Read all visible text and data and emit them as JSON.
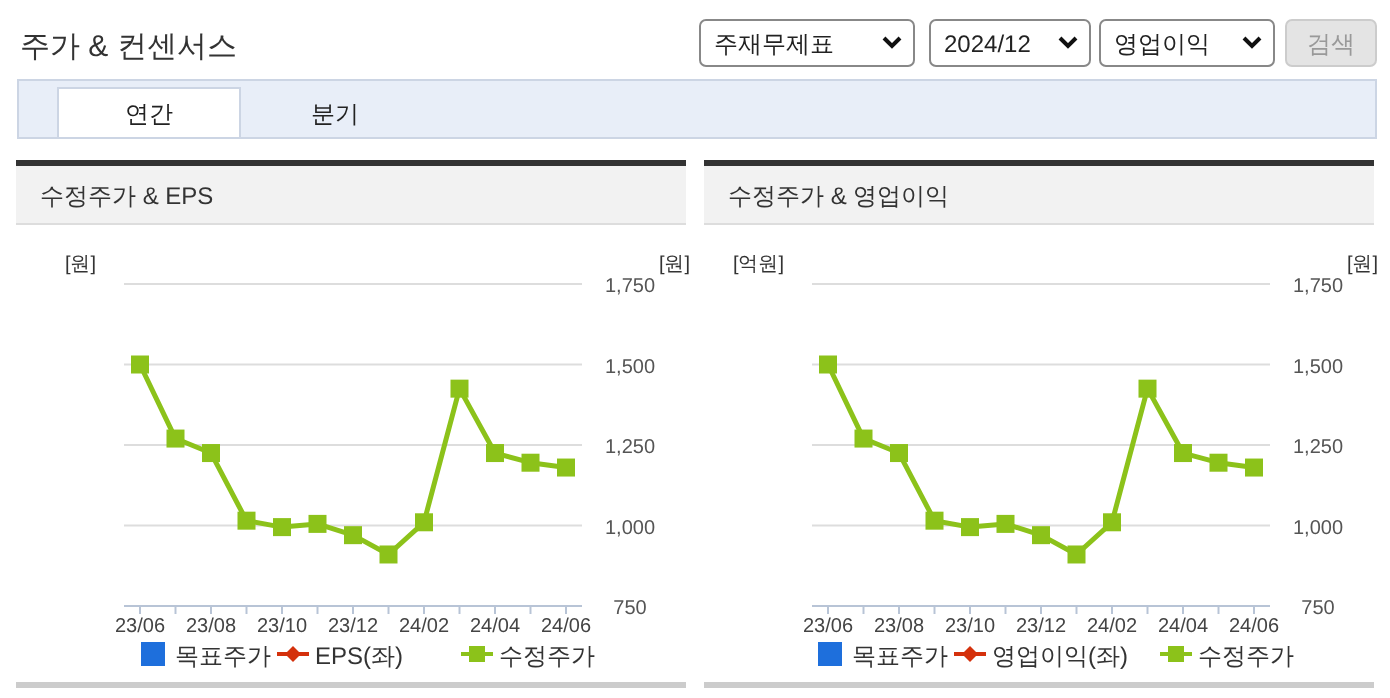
{
  "chart_data": [
    {
      "type": "other",
      "title": "주가 & 컨센서스",
      "annotations": [
        "주재무제표",
        "2024/12",
        "영업이익",
        "검색",
        "연간",
        "분기"
      ]
    },
    {
      "type": "line",
      "title": "수정주가 & EPS",
      "ylabel": "[원]",
      "y2label": "[원]",
      "categories": [
        "23/06",
        null,
        "23/08",
        null,
        "23/10",
        null,
        "23/12",
        null,
        "24/02",
        null,
        "24/04",
        null,
        "24/06"
      ],
      "series": [
        {
          "name": "목표주가",
          "type": "bar",
          "color": "#1e6fdc",
          "values": [
            null,
            null,
            null,
            null,
            null,
            null,
            null,
            null,
            null,
            null,
            null,
            null,
            null
          ]
        },
        {
          "name": "EPS(좌)",
          "color": "#d4310c",
          "marker": "diamond",
          "values": [
            null,
            null,
            null,
            null,
            null,
            null,
            null,
            null,
            null,
            null,
            null,
            null,
            null
          ]
        },
        {
          "name": "수정주가",
          "color": "#8cc21a",
          "axis": "y2",
          "values": [
            1500,
            1270,
            1225,
            1015,
            995,
            1005,
            970,
            910,
            1010,
            1425,
            1225,
            1195,
            1180
          ]
        }
      ],
      "y2lim": [
        750,
        1750
      ],
      "y2ticks": [
        750,
        {
          "value": 1000,
          "label": "1,000"
        },
        {
          "value": 1250,
          "label": "1,250"
        },
        {
          "value": 1500,
          "label": "1,500"
        },
        {
          "value": 1750,
          "label": "1,750"
        }
      ],
      "grid": "y",
      "legend": "bottom",
      "marker": "square",
      "line_style": "solid"
    },
    {
      "type": "line",
      "title": "수정주가 & 영업이익",
      "ylabel": "[억원]",
      "y2label": "[원]",
      "categories": [
        "23/06",
        null,
        "23/08",
        null,
        "23/10",
        null,
        "23/12",
        null,
        "24/02",
        null,
        "24/04",
        null,
        "24/06"
      ],
      "series": [
        {
          "name": "목표주가",
          "type": "bar",
          "color": "#1e6fdc",
          "values": [
            null,
            null,
            null,
            null,
            null,
            null,
            null,
            null,
            null,
            null,
            null,
            null,
            null
          ]
        },
        {
          "name": "영업이익(좌)",
          "color": "#d4310c",
          "marker": "diamond",
          "values": [
            null,
            null,
            null,
            null,
            null,
            null,
            null,
            null,
            null,
            null,
            null,
            null,
            null
          ]
        },
        {
          "name": "수정주가",
          "color": "#8cc21a",
          "axis": "y2",
          "values": [
            1500,
            1270,
            1225,
            1015,
            995,
            1005,
            970,
            910,
            1010,
            1425,
            1225,
            1195,
            1180
          ]
        }
      ],
      "y2lim": [
        750,
        1750
      ],
      "y2ticks": [
        750,
        {
          "value": 1000,
          "label": "1,000"
        },
        {
          "value": 1250,
          "label": "1,250"
        },
        {
          "value": 1500,
          "label": "1,500"
        },
        {
          "value": 1750,
          "label": "1,750"
        }
      ],
      "grid": "y",
      "legend": "bottom",
      "marker": "square",
      "line_style": "solid"
    }
  ]
}
